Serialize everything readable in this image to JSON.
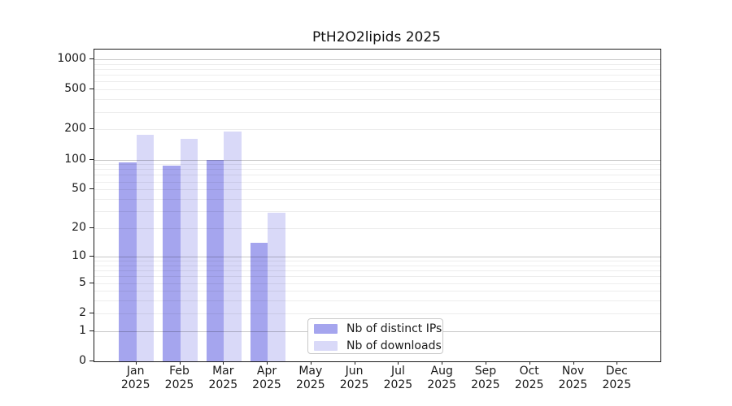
{
  "chart_data": {
    "type": "bar",
    "title": "PtH2O2lipids 2025",
    "categories": [
      "Jan",
      "Feb",
      "Mar",
      "Apr",
      "May",
      "Jun",
      "Jul",
      "Aug",
      "Sep",
      "Oct",
      "Nov",
      "Dec"
    ],
    "category_year": "2025",
    "series": [
      {
        "name": "Nb of distinct IPs",
        "color": "#a5a5ee",
        "values": [
          93,
          87,
          100,
          14,
          null,
          null,
          null,
          null,
          null,
          null,
          null,
          null
        ]
      },
      {
        "name": "Nb of downloads",
        "color": "#d9d9f8",
        "values": [
          177,
          161,
          192,
          29,
          null,
          null,
          null,
          null,
          null,
          null,
          null,
          null
        ]
      }
    ],
    "yscale": "log10(1+v)",
    "ylim": [
      0,
      1250
    ],
    "y_tick_values": [
      0,
      1,
      2,
      5,
      10,
      20,
      50,
      100,
      200,
      500,
      1000
    ],
    "major_gridline_values": [
      1,
      10,
      100,
      1000
    ],
    "grid": "on",
    "legend_position": "lower center inside",
    "xlabel": "",
    "ylabel": ""
  }
}
